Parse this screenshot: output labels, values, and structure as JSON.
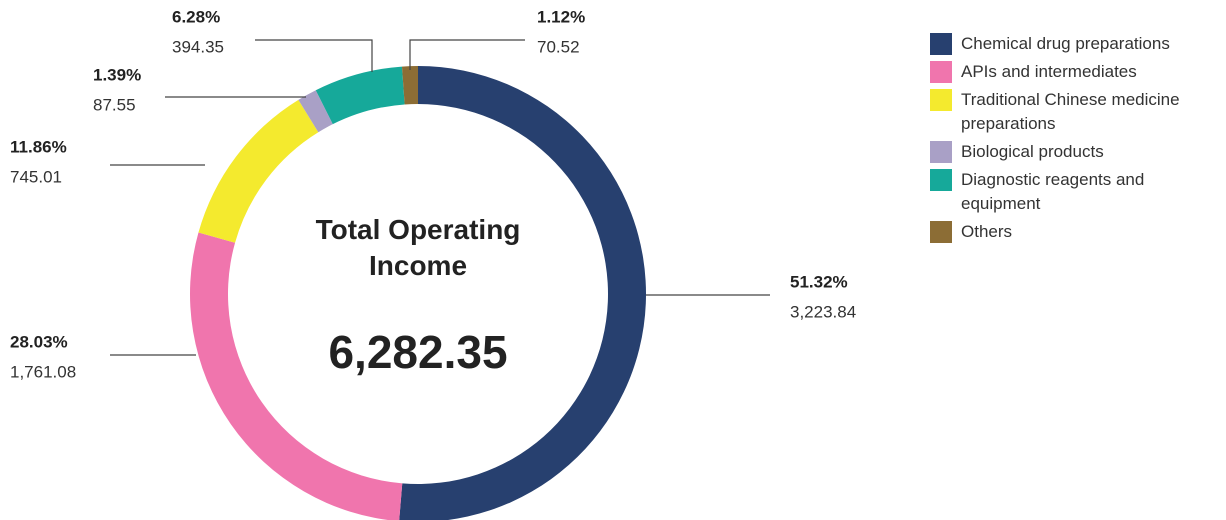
{
  "chart_data": {
    "type": "donut",
    "center_label": "Total Operating Income",
    "total": 6282.35,
    "total_label": "6,282.35",
    "categories": [
      "Chemical drug preparations",
      "APIs and intermediates",
      "Traditional Chinese medicine preparations",
      "Biological products",
      "Diagnostic reagents and equipment",
      "Others"
    ],
    "values": [
      3223.84,
      1761.08,
      745.01,
      87.55,
      394.35,
      70.52
    ],
    "value_labels": [
      "3,223.84",
      "1,761.08",
      "745.01",
      "87.55",
      "394.35",
      "70.52"
    ],
    "percents": [
      51.32,
      28.03,
      11.86,
      1.39,
      6.28,
      1.12
    ],
    "percent_labels": [
      "51.32%",
      "28.03%",
      "11.86%",
      "1.39%",
      "6.28%",
      "1.12%"
    ],
    "colors": [
      "#27406f",
      "#f075ad",
      "#f4ea2e",
      "#a9a0c6",
      "#16a99a",
      "#8c6d35"
    ],
    "legend": "right"
  }
}
